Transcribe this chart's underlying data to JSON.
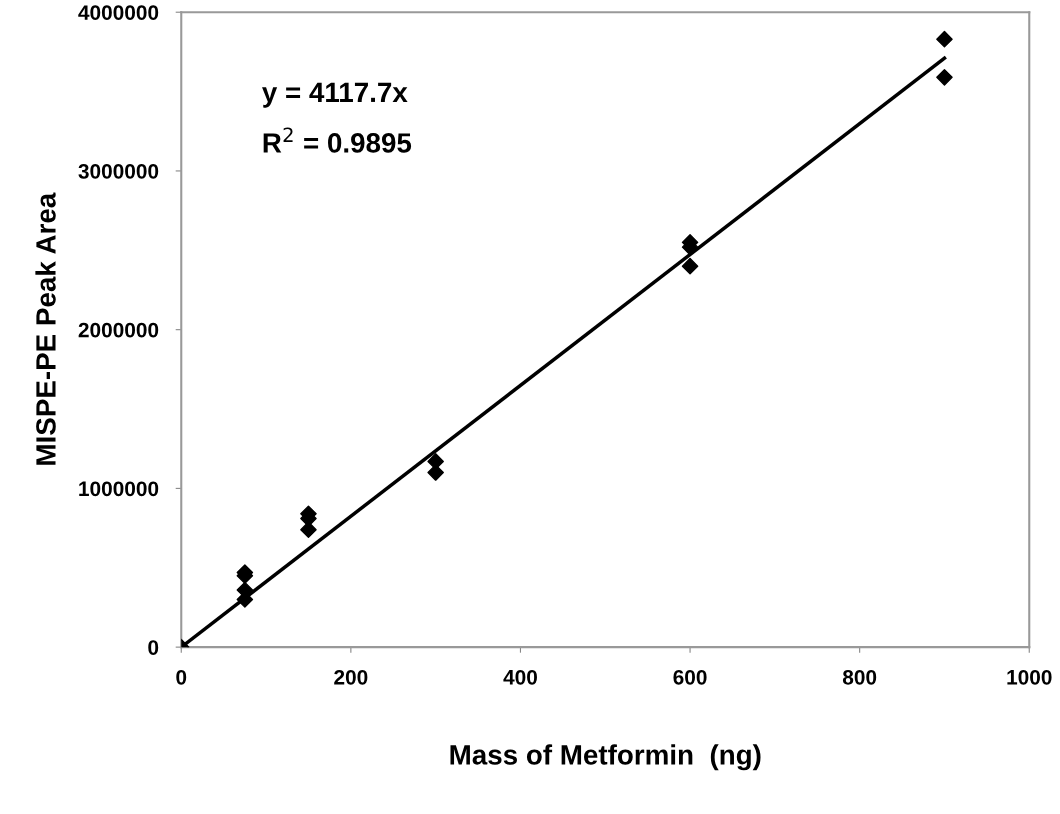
{
  "chart_data": {
    "type": "scatter",
    "xlabel": "Mass of Metformin  (ng)",
    "ylabel": "MISPE-PE Peak Area",
    "xlim": [
      0,
      1000
    ],
    "xticks": [
      0,
      200,
      400,
      600,
      800,
      1000
    ],
    "ylim": [
      0,
      4000000
    ],
    "yticks": [
      0,
      1000000,
      2000000,
      3000000,
      4000000
    ],
    "grid": false,
    "legend": false,
    "marker": "diamond",
    "series": [
      {
        "color": "#000000",
        "x": [
          0,
          75,
          75,
          75,
          75,
          150,
          150,
          150,
          300,
          300,
          600,
          600,
          600,
          900,
          900
        ],
        "values": [
          0,
          470000,
          450000,
          360000,
          300000,
          840000,
          810000,
          740000,
          1170000,
          1100000,
          2550000,
          2520000,
          2400000,
          3830000,
          3590000
        ]
      },
      {
        "type": "line",
        "marker": "none",
        "color": "#000000",
        "x": [
          0,
          900
        ],
        "values": [
          0,
          3710000
        ]
      }
    ],
    "annotations": [
      "y = 4117.7x",
      "R$^{2}$ = 0.9895"
    ]
  }
}
